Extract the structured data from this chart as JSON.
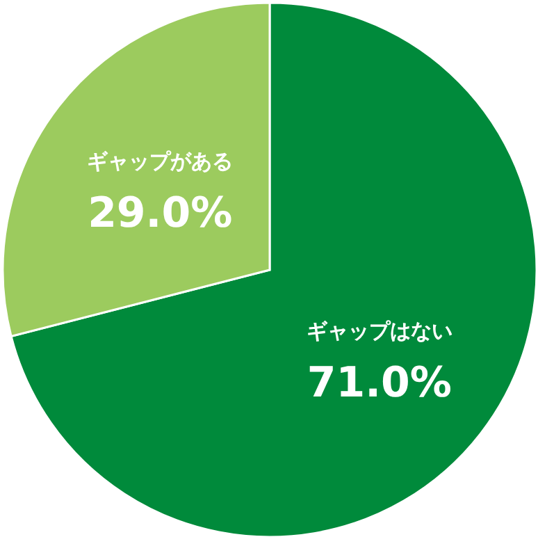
{
  "chart_data": {
    "type": "pie",
    "categories": [
      "ギャップはない",
      "ギャップがある"
    ],
    "values": [
      71.0,
      29.0
    ],
    "colors": [
      "#008a3b",
      "#9ccb5e"
    ],
    "value_labels": [
      "71.0%",
      "29.0%"
    ]
  }
}
